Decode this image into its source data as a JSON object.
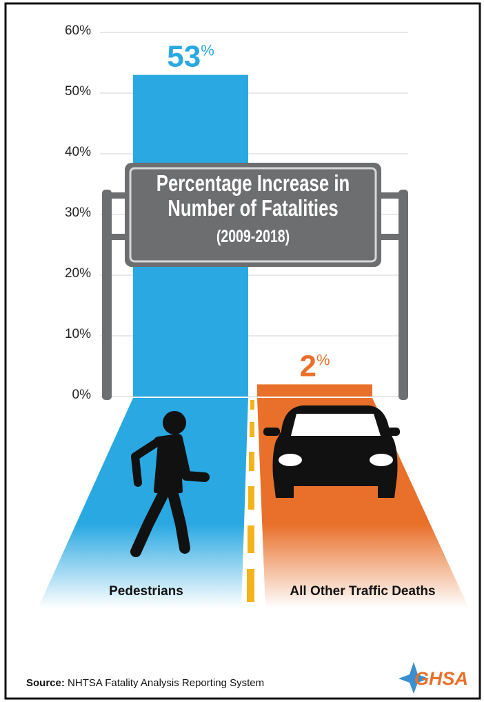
{
  "chart_data": {
    "type": "bar",
    "title": "Percentage Increase in Number of Fatalities",
    "subtitle": "(2009-2018)",
    "categories": [
      "Pedestrians",
      "All Other Traffic Deaths"
    ],
    "values": [
      53,
      2
    ],
    "value_labels": [
      "53%",
      "2%"
    ],
    "colors": [
      "#29a8e2",
      "#e8702a"
    ],
    "ylim": [
      0,
      60
    ],
    "yticks": [
      {
        "value": 0,
        "label": "0%"
      },
      {
        "value": 10,
        "label": "10%"
      },
      {
        "value": 20,
        "label": "20%"
      },
      {
        "value": 30,
        "label": "30%"
      },
      {
        "value": 40,
        "label": "40%"
      },
      {
        "value": 50,
        "label": "50%"
      },
      {
        "value": 60,
        "label": "60%"
      }
    ],
    "grid": true,
    "source_label": "Source:",
    "source": "NHTSA Fatality Analysis Reporting System",
    "logo": "GHSA"
  }
}
